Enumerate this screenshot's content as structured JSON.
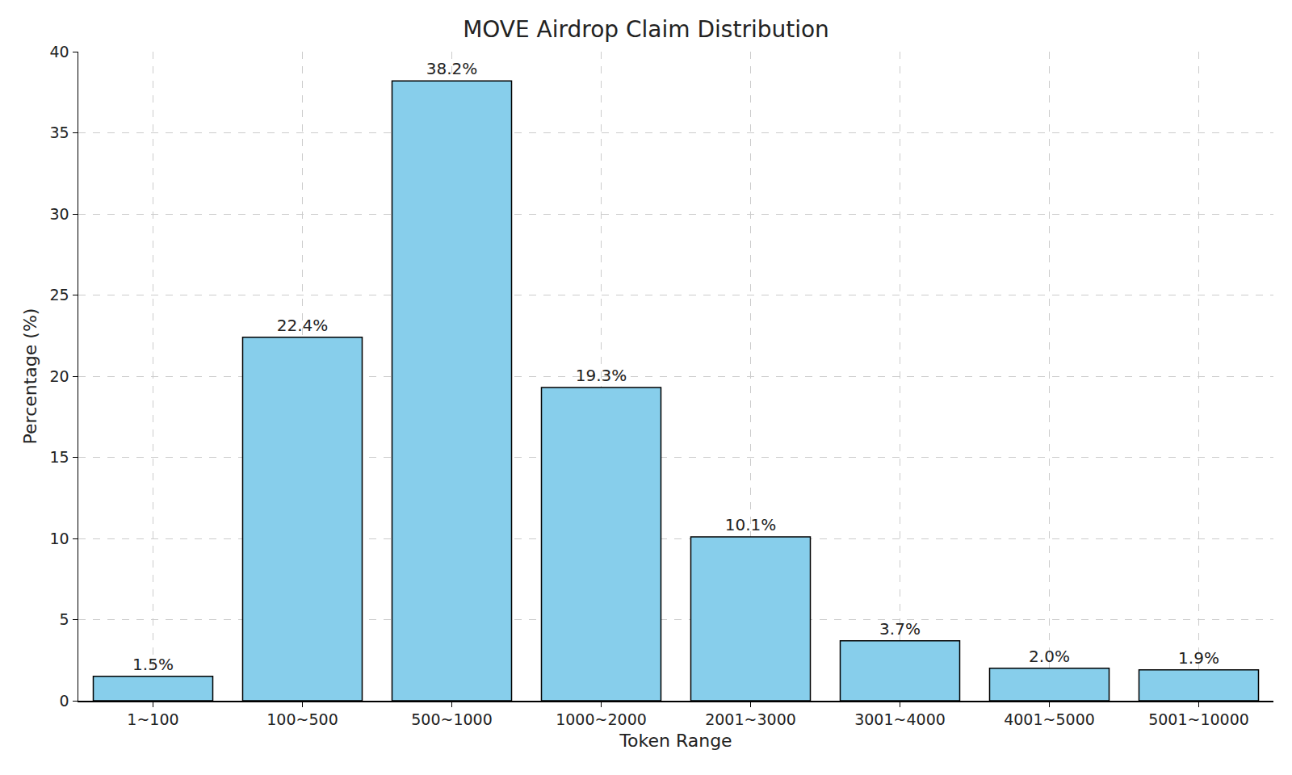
{
  "chart_data": {
    "type": "bar",
    "title": "MOVE Airdrop Claim Distribution",
    "x_label": "Token Range",
    "y_label": "Percentage (%)",
    "categories": [
      "1~100",
      "100~500",
      "500~1000",
      "1000~2000",
      "2001~3000",
      "3001~4000",
      "4001~5000",
      "5001~10000"
    ],
    "values": [
      1.5,
      22.4,
      38.2,
      19.3,
      10.1,
      3.7,
      2.0,
      1.9
    ],
    "value_labels": [
      "1.5%",
      "22.4%",
      "38.2%",
      "19.3%",
      "10.1%",
      "3.7%",
      "2.0%",
      "1.9%"
    ],
    "color": "#87ceeb",
    "ylim": [
      0,
      40
    ],
    "yticks": [
      0,
      5,
      10,
      15,
      20,
      25,
      30,
      35,
      40
    ],
    "grid": true,
    "data_labels": true
  }
}
